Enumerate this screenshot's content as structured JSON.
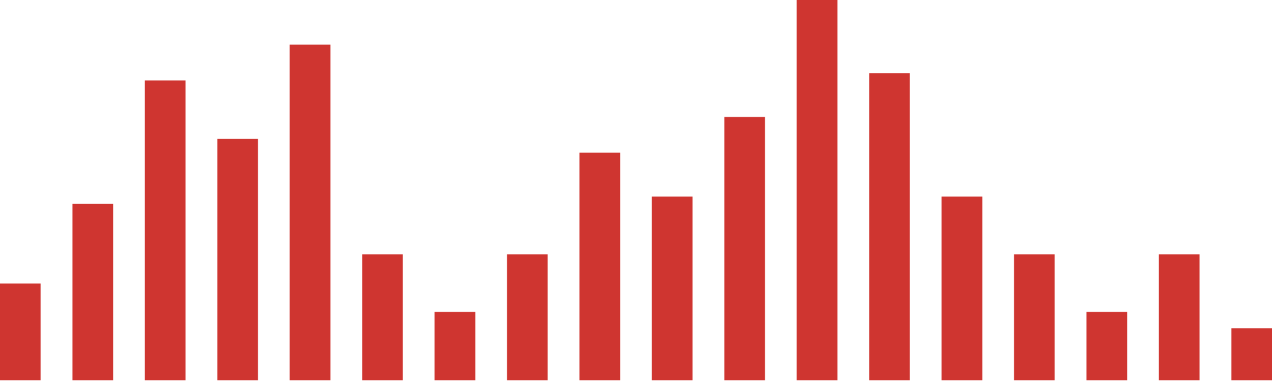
{
  "chart_data": {
    "type": "bar",
    "values": [
      119,
      217,
      369,
      297,
      413,
      155,
      84,
      155,
      280,
      226,
      324,
      468,
      378,
      226,
      155,
      84,
      155,
      64
    ],
    "color": "#cf3530",
    "ylim": [
      0,
      468
    ]
  }
}
